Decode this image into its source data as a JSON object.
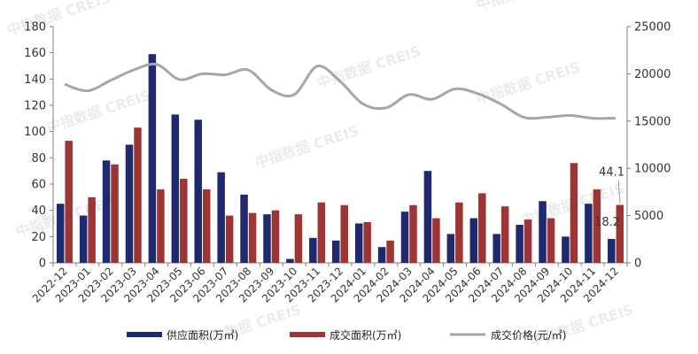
{
  "watermark": "中指数据 CREIS",
  "colors": {
    "supply": "#1f2a6e",
    "sold": "#9e3535",
    "price": "#a6a6a6",
    "axis": "#7f7f7f"
  },
  "chart_data": {
    "type": "bar",
    "categories": [
      "2022-12",
      "2023-01",
      "2023-02",
      "2023-03",
      "2023-04",
      "2023-05",
      "2023-06",
      "2023-07",
      "2023-08",
      "2023-09",
      "2023-10",
      "2023-11",
      "2023-12",
      "2024-01",
      "2024-02",
      "2024-03",
      "2024-04",
      "2024-05",
      "2024-06",
      "2024-07",
      "2024-08",
      "2024-09",
      "2024-10",
      "2024-11",
      "2024-12"
    ],
    "series": [
      {
        "name": "供应面积(万㎡)",
        "type": "bar",
        "axis": "left",
        "values": [
          45,
          36,
          78,
          90,
          159,
          113,
          109,
          69,
          52,
          37,
          3,
          19,
          17,
          30,
          12,
          39,
          70,
          22,
          34,
          22,
          29,
          47,
          20,
          45,
          18.2
        ]
      },
      {
        "name": "成交面积(万㎡)",
        "type": "bar",
        "axis": "left",
        "values": [
          93,
          50,
          75,
          103,
          56,
          64,
          56,
          36,
          38,
          40,
          37,
          46,
          44,
          31,
          17,
          44,
          34,
          46,
          53,
          43,
          33,
          34,
          76,
          56,
          44.1
        ]
      },
      {
        "name": "成交价格(元/㎡)",
        "type": "line",
        "axis": "right",
        "values": [
          18900,
          18200,
          19300,
          20400,
          21000,
          19400,
          20000,
          19900,
          20400,
          18300,
          17800,
          20800,
          19200,
          16800,
          16400,
          17800,
          17300,
          18400,
          17900,
          16800,
          15400,
          15400,
          15600,
          15300,
          15300
        ]
      }
    ],
    "y_left": {
      "min": 0,
      "max": 180,
      "ticks": [
        "0",
        "20",
        "40",
        "60",
        "80",
        "100",
        "120",
        "140",
        "160",
        "180"
      ]
    },
    "y_right": {
      "min": 0,
      "max": 25000,
      "ticks": [
        "0",
        "5000",
        "10000",
        "15000",
        "20000",
        "25000"
      ]
    },
    "data_labels": [
      {
        "text": "44.1",
        "series": 1,
        "index": 24
      },
      {
        "text": "18.2",
        "series": 0,
        "index": 24
      }
    ],
    "legend_position": "bottom",
    "grid": false
  }
}
